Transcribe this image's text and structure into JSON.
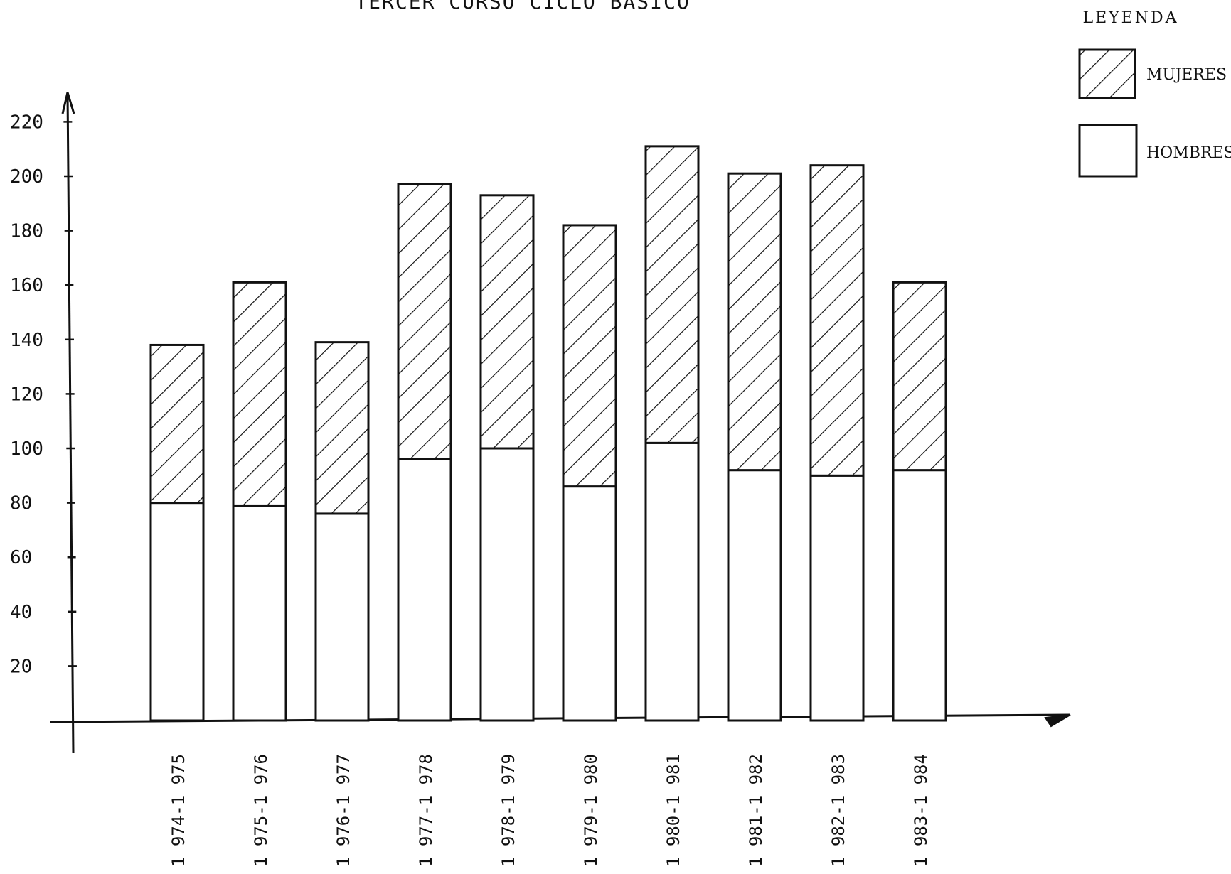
{
  "chart_data": {
    "type": "bar",
    "stacked": true,
    "title": "TERCER CURSO CICLO BASICO",
    "categories": [
      "1 974-1 975",
      "1 975-1 976",
      "1 976-1 977",
      "1 977-1 978",
      "1 978-1 979",
      "1 979-1 980",
      "1 980-1 981",
      "1 981-1 982",
      "1 982-1 983",
      "1 983-1 984"
    ],
    "series": [
      {
        "name": "HOMBRES",
        "values": [
          80,
          79,
          76,
          96,
          100,
          86,
          102,
          92,
          90,
          92
        ],
        "pattern": "none"
      },
      {
        "name": "MUJERES",
        "values": [
          58,
          82,
          63,
          101,
          93,
          96,
          109,
          109,
          114,
          69
        ],
        "pattern": "hatch"
      }
    ],
    "totals": [
      138,
      161,
      139,
      197,
      193,
      182,
      211,
      201,
      204,
      161
    ],
    "yticks": [
      20,
      40,
      60,
      80,
      100,
      120,
      140,
      160,
      180,
      200,
      220
    ],
    "ylim": [
      0,
      230
    ],
    "xlabel": "",
    "ylabel": "",
    "grid": false,
    "legend": {
      "title": "LEYENDA",
      "position": "top-right"
    },
    "colors": {
      "ink": "#111111",
      "fill": "#ffffff"
    }
  }
}
